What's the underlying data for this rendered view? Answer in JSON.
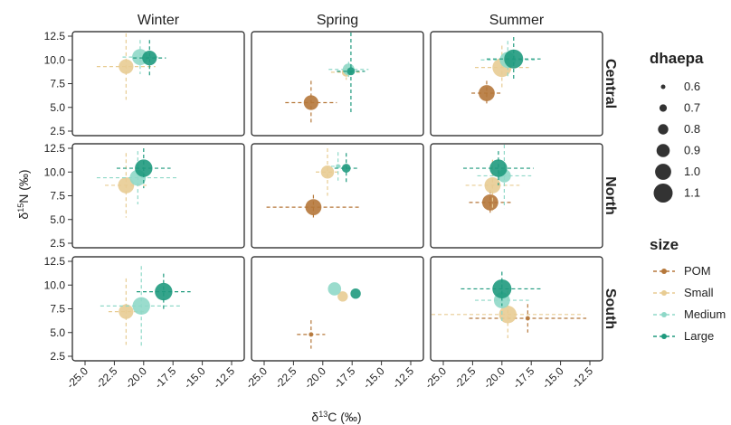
{
  "chart_data": {
    "type": "scatter",
    "xlabel": "δ13C (‰)",
    "xlabel_parts": {
      "prefix": "δ",
      "sup": "13",
      "suffix": "C (‰)"
    },
    "ylabel": "δ15N (‰)",
    "ylabel_parts": {
      "prefix": "δ",
      "sup": "15",
      "suffix": "N (‰)"
    },
    "xlim": [
      -25.0,
      -12.5
    ],
    "ylim": [
      2.5,
      12.5
    ],
    "x_ticks": [
      "-25.0",
      "-22.5",
      "-20.0",
      "-17.5",
      "-15.0",
      "-12.5"
    ],
    "y_ticks": [
      "2.5",
      "5.0",
      "7.5",
      "10.0",
      "12.5"
    ],
    "columns": [
      "Winter",
      "Spring",
      "Summer"
    ],
    "rows": [
      "Central",
      "North",
      "South"
    ],
    "colors": {
      "POM": "#b5773a",
      "Small": "#e8cc93",
      "Medium": "#8fd8c8",
      "Large": "#1f9a7e"
    },
    "legend_size": {
      "title": "dhaepa",
      "items": [
        {
          "label": "0.6",
          "value": 0.6
        },
        {
          "label": "0.7",
          "value": 0.7
        },
        {
          "label": "0.8",
          "value": 0.8
        },
        {
          "label": "0.9",
          "value": 0.9
        },
        {
          "label": "1.0",
          "value": 1.0
        },
        {
          "label": "1.1",
          "value": 1.1
        }
      ]
    },
    "legend_group": {
      "title": "size",
      "items": [
        "POM",
        "Small",
        "Medium",
        "Large"
      ]
    },
    "panels": [
      {
        "row": "Central",
        "col": "Winter",
        "points": [
          {
            "group": "Small",
            "x": -21.5,
            "y": 9.3,
            "xerr": 2.5,
            "yerr": 3.5,
            "dhaepa": 0.95
          },
          {
            "group": "Medium",
            "x": -20.3,
            "y": 10.3,
            "xerr": 1.5,
            "yerr": 1.8,
            "dhaepa": 1.0
          },
          {
            "group": "Large",
            "x": -19.5,
            "y": 10.2,
            "xerr": 1.4,
            "yerr": 1.9,
            "dhaepa": 0.95
          }
        ]
      },
      {
        "row": "Central",
        "col": "Spring",
        "points": [
          {
            "group": "POM",
            "x": -21.0,
            "y": 5.5,
            "xerr": 2.2,
            "yerr": 2.3,
            "dhaepa": 0.95
          },
          {
            "group": "Small",
            "x": -18.0,
            "y": 8.7,
            "xerr": 1.3,
            "yerr": 0.8,
            "dhaepa": 0.75
          },
          {
            "group": "Medium",
            "x": -17.8,
            "y": 9.0,
            "xerr": 1.7,
            "yerr": 0.8,
            "dhaepa": 0.85
          },
          {
            "group": "Large",
            "x": -17.6,
            "y": 8.8,
            "xerr": 1.2,
            "yerr": 4.3,
            "dhaepa": 0.72
          }
        ]
      },
      {
        "row": "Central",
        "col": "Summer",
        "points": [
          {
            "group": "POM",
            "x": -21.3,
            "y": 6.5,
            "xerr": 1.3,
            "yerr": 1.3,
            "dhaepa": 1.0
          },
          {
            "group": "Small",
            "x": -20.0,
            "y": 9.2,
            "xerr": 2.3,
            "yerr": 2.3,
            "dhaepa": 1.1
          },
          {
            "group": "Medium",
            "x": -19.5,
            "y": 10.0,
            "xerr": 2.3,
            "yerr": 2.0,
            "dhaepa": 1.0
          },
          {
            "group": "Large",
            "x": -19.0,
            "y": 10.1,
            "xerr": 2.3,
            "yerr": 2.3,
            "dhaepa": 1.1
          }
        ]
      },
      {
        "row": "North",
        "col": "Winter",
        "points": [
          {
            "group": "Small",
            "x": -21.5,
            "y": 8.6,
            "xerr": 1.8,
            "yerr": 3.4,
            "dhaepa": 1.0
          },
          {
            "group": "Medium",
            "x": -20.5,
            "y": 9.4,
            "xerr": 3.5,
            "yerr": 2.8,
            "dhaepa": 1.0
          },
          {
            "group": "Large",
            "x": -20.0,
            "y": 10.4,
            "xerr": 2.3,
            "yerr": 2.1,
            "dhaepa": 1.05
          }
        ]
      },
      {
        "row": "North",
        "col": "Spring",
        "points": [
          {
            "group": "POM",
            "x": -20.8,
            "y": 6.3,
            "xerr": 4.0,
            "yerr": 1.3,
            "dhaepa": 1.0
          },
          {
            "group": "Small",
            "x": -19.6,
            "y": 10.0,
            "xerr": 1.0,
            "yerr": 2.5,
            "dhaepa": 0.9
          },
          {
            "group": "Medium",
            "x": -18.7,
            "y": 10.6,
            "xerr": 0.6,
            "yerr": 1.5,
            "dhaepa": 0.6
          },
          {
            "group": "Large",
            "x": -18.0,
            "y": 10.4,
            "xerr": 1.0,
            "yerr": 1.6,
            "dhaepa": 0.75
          }
        ]
      },
      {
        "row": "North",
        "col": "Summer",
        "points": [
          {
            "group": "POM",
            "x": -21.0,
            "y": 6.8,
            "xerr": 1.8,
            "yerr": 1.3,
            "dhaepa": 1.0
          },
          {
            "group": "Small",
            "x": -20.8,
            "y": 8.6,
            "xerr": 2.3,
            "yerr": 2.7,
            "dhaepa": 1.0
          },
          {
            "group": "Medium",
            "x": -19.8,
            "y": 9.6,
            "xerr": 2.3,
            "yerr": 3.4,
            "dhaepa": 0.9
          },
          {
            "group": "Large",
            "x": -20.3,
            "y": 10.4,
            "xerr": 3.0,
            "yerr": 1.8,
            "dhaepa": 1.05
          }
        ]
      },
      {
        "row": "South",
        "col": "Winter",
        "points": [
          {
            "group": "Small",
            "x": -21.5,
            "y": 7.2,
            "xerr": 1.5,
            "yerr": 3.5,
            "dhaepa": 0.95
          },
          {
            "group": "Medium",
            "x": -20.2,
            "y": 7.8,
            "xerr": 3.5,
            "yerr": 4.2,
            "dhaepa": 1.05
          },
          {
            "group": "Large",
            "x": -18.3,
            "y": 9.3,
            "xerr": 2.3,
            "yerr": 1.9,
            "dhaepa": 1.05
          }
        ]
      },
      {
        "row": "South",
        "col": "Spring",
        "points": [
          {
            "group": "POM",
            "x": -21.0,
            "y": 4.8,
            "xerr": 1.2,
            "yerr": 1.5,
            "dhaepa": 0.6
          },
          {
            "group": "Medium",
            "x": -19.0,
            "y": 9.6,
            "xerr": 0,
            "yerr": 0,
            "dhaepa": 0.9
          },
          {
            "group": "Small",
            "x": -18.3,
            "y": 8.8,
            "xerr": 0,
            "yerr": 0,
            "dhaepa": 0.8
          },
          {
            "group": "Large",
            "x": -17.2,
            "y": 9.1,
            "xerr": 0,
            "yerr": 0,
            "dhaepa": 0.8
          }
        ]
      },
      {
        "row": "South",
        "col": "Summer",
        "points": [
          {
            "group": "POM",
            "x": -17.8,
            "y": 6.5,
            "xerr": 5.0,
            "yerr": 1.5,
            "dhaepa": 0.6
          },
          {
            "group": "Small",
            "x": -19.5,
            "y": 6.9,
            "xerr": 6.5,
            "yerr": 2.5,
            "dhaepa": 1.05
          },
          {
            "group": "Medium",
            "x": -20.0,
            "y": 8.4,
            "xerr": 2.3,
            "yerr": 2.2,
            "dhaepa": 1.0
          },
          {
            "group": "Large",
            "x": -20.0,
            "y": 9.6,
            "xerr": 3.5,
            "yerr": 1.8,
            "dhaepa": 1.1
          }
        ]
      }
    ]
  }
}
